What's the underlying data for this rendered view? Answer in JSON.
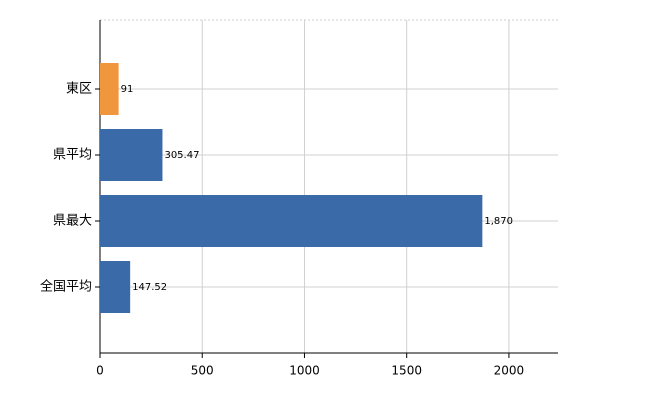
{
  "chart_data": {
    "type": "hbar",
    "categories": [
      "東区",
      "県平均",
      "県最大",
      "全国平均"
    ],
    "values": [
      91,
      305.47,
      1870,
      147.52
    ],
    "value_labels": [
      "91",
      "305.47",
      "1,870",
      "147.52"
    ],
    "colors": [
      "#f0963c",
      "#3a6aa8",
      "#3a6aa8",
      "#3a6aa8"
    ],
    "xlim": [
      0,
      2240
    ],
    "xticks": [
      0,
      500,
      1000,
      1500,
      2000
    ],
    "grid": true
  }
}
